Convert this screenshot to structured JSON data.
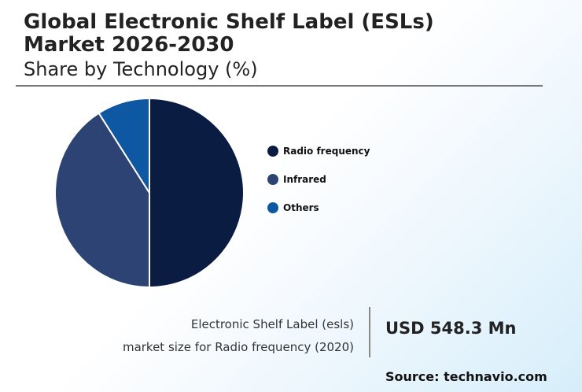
{
  "header": {
    "title": "Global Electronic Shelf Label (ESLs) Market 2026-2030",
    "subtitle": "Share by Technology (%)"
  },
  "chart_data": {
    "type": "pie",
    "categories": [
      "Radio frequency",
      "Infrared",
      "Others"
    ],
    "values": [
      50,
      41,
      9
    ],
    "colors": [
      "#0b1c42",
      "#2c4373",
      "#0e57a3"
    ],
    "legend_position": "right"
  },
  "stat": {
    "label_line1": "Electronic Shelf Label (esls)",
    "label_line2": "market size for Radio frequency (2020)",
    "value": "USD 548.3 Mn"
  },
  "footer": {
    "source": "Source: technavio.com"
  }
}
